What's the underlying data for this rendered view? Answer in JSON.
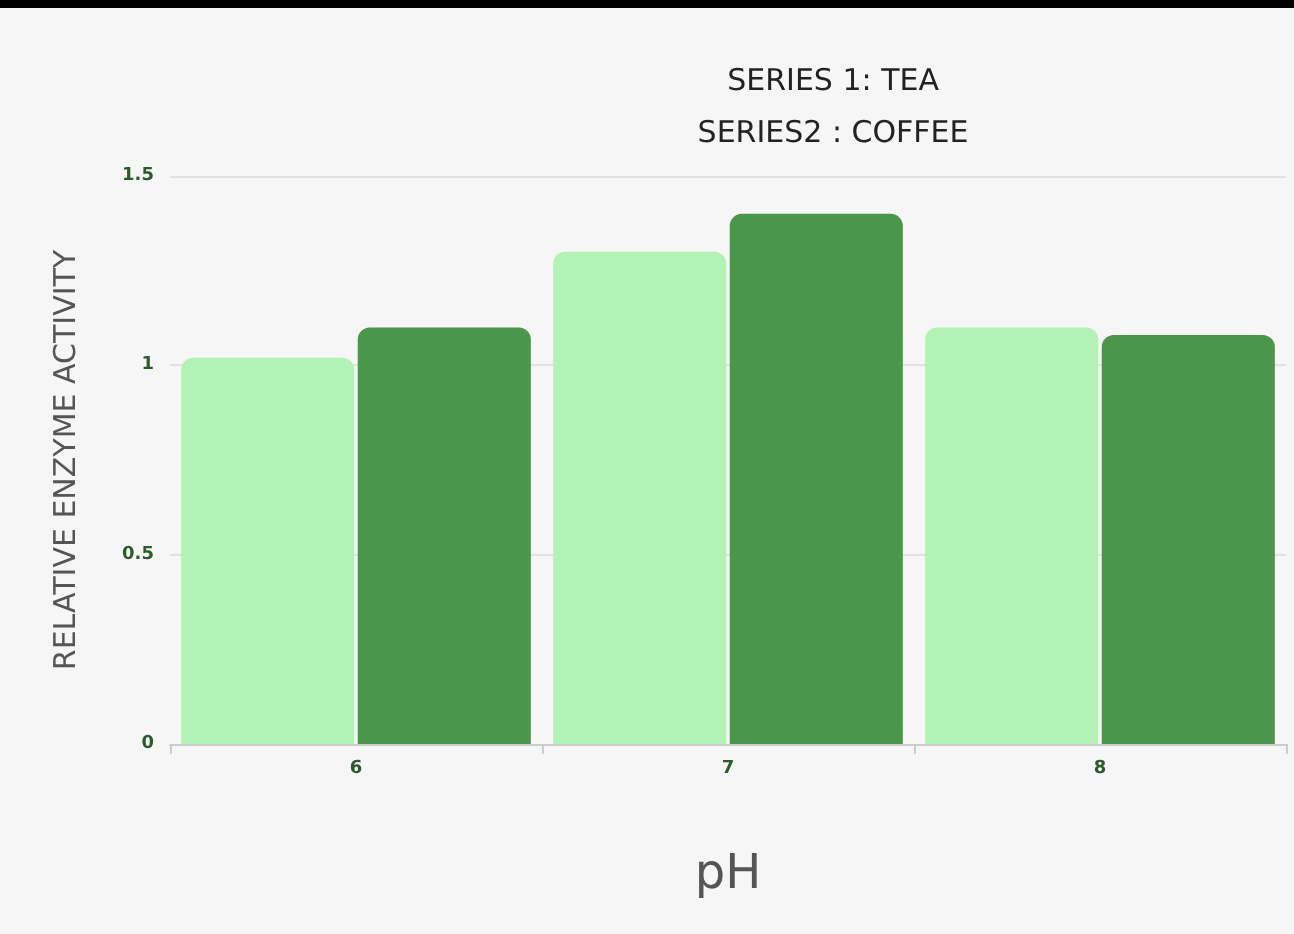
{
  "chart_data": {
    "type": "bar",
    "xlabel": "pH",
    "ylabel": "RELATIVE ENZYME ACTIVITY",
    "annotations": [
      "SERIES 1: TEA",
      "SERIES2 : COFFEE"
    ],
    "categories": [
      "6",
      "7",
      "8"
    ],
    "series": [
      {
        "color": "#b3f2b5",
        "values": [
          1.02,
          1.3,
          1.1
        ]
      },
      {
        "color": "#4a964b",
        "values": [
          1.1,
          1.4,
          1.08
        ]
      }
    ],
    "ylim": [
      0,
      1.5
    ],
    "yticks": [
      0,
      0.5,
      1,
      1.5
    ],
    "grid": "y"
  }
}
